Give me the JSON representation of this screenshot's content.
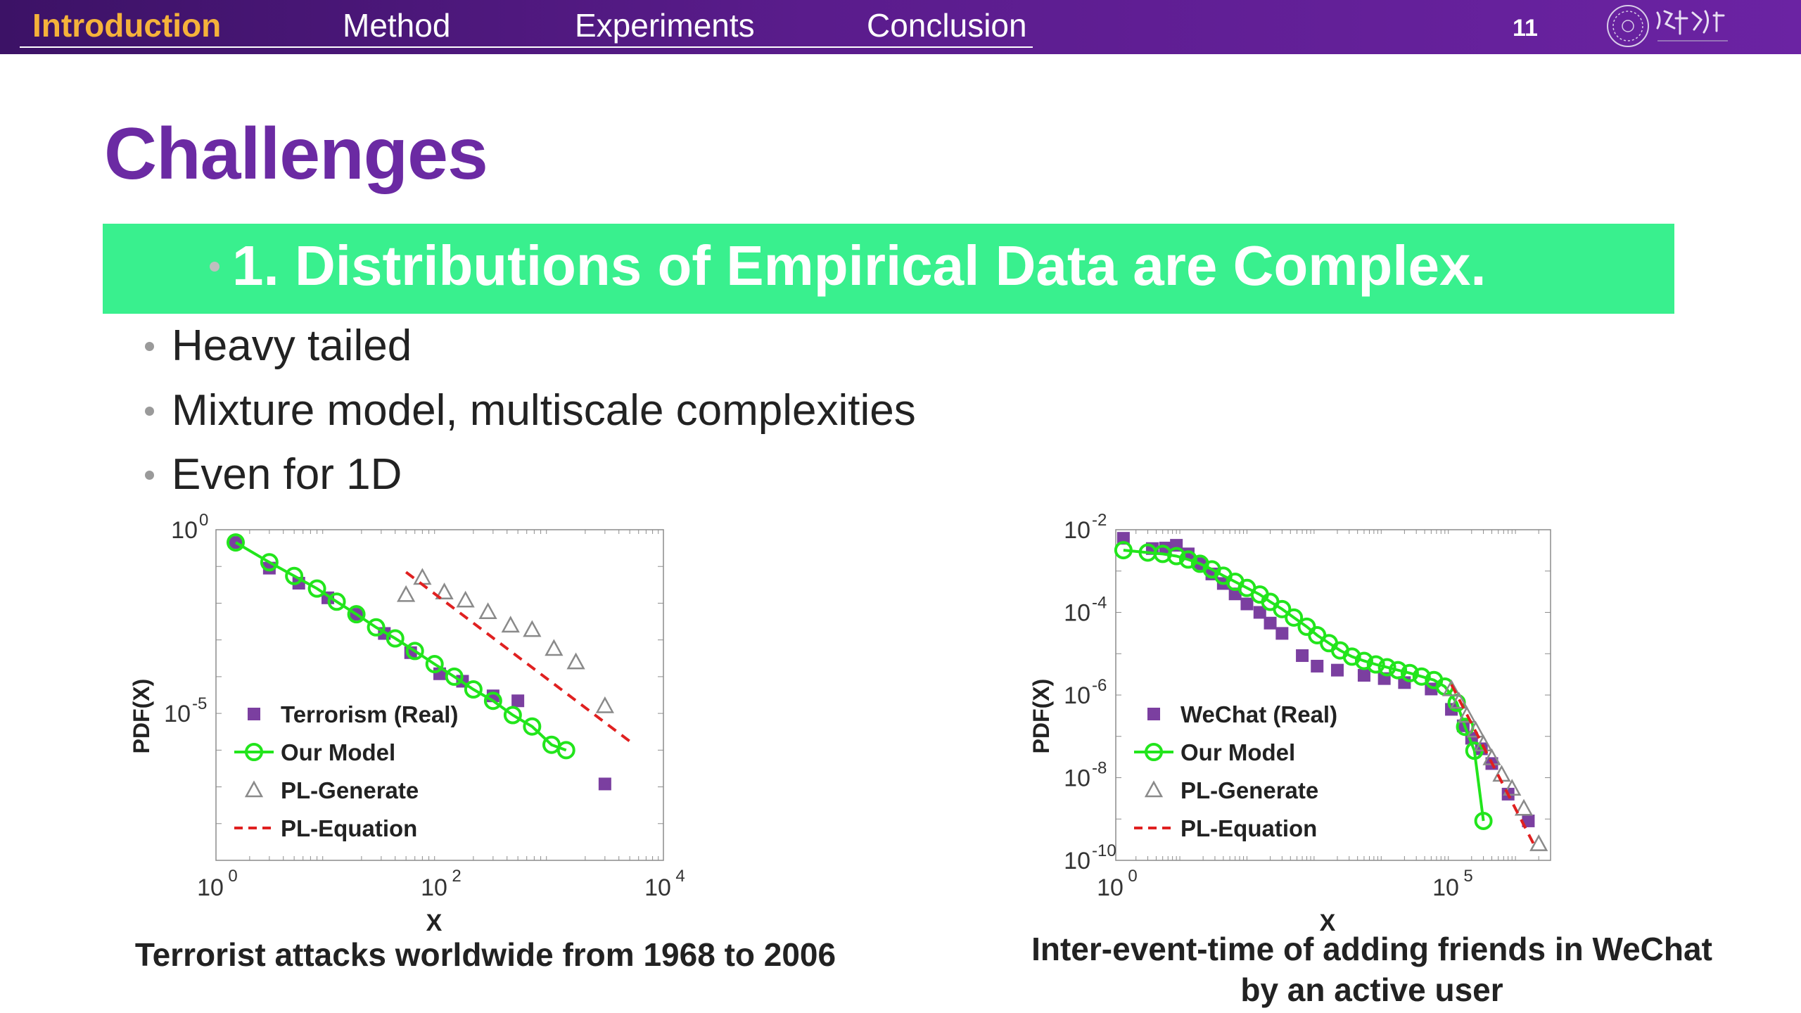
{
  "nav": {
    "items": [
      {
        "label": "Introduction",
        "active": true
      },
      {
        "label": "Method",
        "active": false
      },
      {
        "label": "Experiments",
        "active": false
      },
      {
        "label": "Conclusion",
        "active": false
      }
    ],
    "page_number": "11",
    "logo_icon": "university-logo-icon"
  },
  "slide": {
    "title": "Challenges",
    "banner": "1. Distributions of Empirical Data are Complex.",
    "bullets": [
      "Heavy tailed",
      "Mixture model, multiscale complexities",
      "Even for 1D"
    ]
  },
  "colors": {
    "title": "#6b2aa3",
    "banner": "#39f08e",
    "nav_active": "#f5b23a",
    "real_series": "#7b3fa0",
    "model_series": "#22e51c",
    "pl_generate": "#8a8a8a",
    "pl_equation": "#e02020"
  },
  "chart_data": [
    {
      "type": "scatter",
      "caption": "Terrorist attacks worldwide from 1968 to 2006",
      "xlabel": "X",
      "ylabel": "PDF(X)",
      "xscale": "log",
      "yscale": "log",
      "xlim": [
        1,
        10000
      ],
      "ylim": [
        1e-09,
        1
      ],
      "x_ticks": [
        {
          "base": "10",
          "exp": "0",
          "value": 1
        },
        {
          "base": "10",
          "exp": "2",
          "value": 100
        },
        {
          "base": "10",
          "exp": "4",
          "value": 10000
        }
      ],
      "y_ticks": [
        {
          "base": "10",
          "exp": "0",
          "value": 1
        },
        {
          "base": "10",
          "exp": "-5",
          "value": 1e-05
        }
      ],
      "legend_position": "bottom-left",
      "series": [
        {
          "name": "Terrorism (Real)",
          "marker": "square",
          "color": "#7b3fa0",
          "x": [
            1.5,
            3,
            5.5,
            10,
            18,
            32,
            55,
            100,
            160,
            300,
            500,
            3000
          ],
          "y": [
            0.45,
            0.09,
            0.035,
            0.014,
            0.005,
            0.0015,
            0.00045,
            0.00012,
            7.5e-05,
            3e-05,
            2.2e-05,
            1.2e-07
          ]
        },
        {
          "name": "Our Model",
          "marker": "circle-line",
          "color": "#22e51c",
          "x": [
            1.5,
            3,
            5,
            8,
            12,
            18,
            27,
            40,
            60,
            90,
            135,
            200,
            300,
            450,
            670,
            1000,
            1350
          ],
          "y": [
            0.45,
            0.13,
            0.055,
            0.025,
            0.011,
            0.005,
            0.0022,
            0.0011,
            0.0005,
            0.00022,
            0.0001,
            4.5e-05,
            2.2e-05,
            9e-06,
            4.4e-06,
            1.4e-06,
            1e-06
          ]
        },
        {
          "name": "PL-Generate",
          "marker": "triangle",
          "color": "#8a8a8a",
          "x": [
            50,
            70,
            110,
            170,
            270,
            430,
            670,
            1050,
            1650,
            3000
          ],
          "y": [
            0.017,
            0.05,
            0.02,
            0.012,
            0.0058,
            0.0025,
            0.0019,
            0.00058,
            0.00025,
            1.6e-05
          ]
        },
        {
          "name": "PL-Equation",
          "marker": "dashed-line",
          "color": "#e02020",
          "x": [
            50,
            5500
          ],
          "y": [
            0.07,
            1.4e-06
          ]
        }
      ]
    },
    {
      "type": "scatter",
      "caption": "Inter-event-time of adding friends in WeChat by an active user",
      "xlabel": "X",
      "ylabel": "PDF(X)",
      "xscale": "log",
      "yscale": "log",
      "xlim": [
        1,
        3000000
      ],
      "ylim": [
        1e-10,
        0.01
      ],
      "x_ticks": [
        {
          "base": "10",
          "exp": "0",
          "value": 1
        },
        {
          "base": "10",
          "exp": "5",
          "value": 100000
        }
      ],
      "y_ticks": [
        {
          "base": "10",
          "exp": "-2",
          "value": 0.01
        },
        {
          "base": "10",
          "exp": "-4",
          "value": 0.0001
        },
        {
          "base": "10",
          "exp": "-6",
          "value": 1e-06
        },
        {
          "base": "10",
          "exp": "-8",
          "value": 1e-08
        },
        {
          "base": "10",
          "exp": "-10",
          "value": 1e-10
        }
      ],
      "legend_position": "bottom-left",
      "series": [
        {
          "name": "WeChat (Real)",
          "marker": "square",
          "color": "#7b3fa0",
          "x": [
            1.3,
            3.5,
            5.5,
            8,
            12,
            18,
            27,
            40,
            60,
            90,
            140,
            200,
            300,
            600,
            1000,
            2000,
            5000,
            10000,
            20000,
            50000,
            100000,
            150000,
            200000,
            280000,
            400000,
            700000,
            1400000
          ],
          "y": [
            0.0062,
            0.0035,
            0.0036,
            0.0042,
            0.0026,
            0.0015,
            0.00085,
            0.0005,
            0.00028,
            0.00016,
            0.0001,
            5.5e-05,
            3.1e-05,
            9e-06,
            5e-06,
            4e-06,
            3e-06,
            2.5e-06,
            2e-06,
            1.4e-06,
            4.5e-07,
            1.8e-07,
            9e-08,
            5e-08,
            2.2e-08,
            4e-09,
            9e-10
          ]
        },
        {
          "name": "Our Model",
          "marker": "circle-line",
          "color": "#22e51c",
          "x": [
            1.3,
            3,
            5,
            8,
            12,
            18,
            27,
            40,
            60,
            90,
            140,
            200,
            300,
            450,
            700,
            1000,
            1500,
            2200,
            3300,
            5000,
            7500,
            11000,
            16000,
            24000,
            36000,
            55000,
            80000,
            120000,
            160000,
            220000,
            300000
          ],
          "y": [
            0.0032,
            0.0028,
            0.0026,
            0.0023,
            0.0019,
            0.0015,
            0.0011,
            0.00077,
            0.00055,
            0.00039,
            0.00027,
            0.00018,
            0.00012,
            7.5e-05,
            4.5e-05,
            2.8e-05,
            1.8e-05,
            1.2e-05,
            8.5e-06,
            6.7e-06,
            5.5e-06,
            4.7e-06,
            4e-06,
            3.4e-06,
            2.8e-06,
            2.3e-06,
            1.6e-06,
            6.5e-07,
            1.7e-07,
            4.5e-08,
            9e-10
          ]
        },
        {
          "name": "PL-Generate",
          "marker": "triangle",
          "color": "#8a8a8a",
          "x": [
            100000,
            130000,
            170000,
            230000,
            300000,
            400000,
            560000,
            800000,
            1200000,
            2000000
          ],
          "y": [
            1.4e-06,
            7e-07,
            3.2e-07,
            1.4e-07,
            6.5e-08,
            3e-08,
            1.2e-08,
            5.5e-09,
            1.8e-09,
            2.5e-10
          ]
        },
        {
          "name": "PL-Equation",
          "marker": "dashed-line",
          "color": "#e02020",
          "x": [
            100000,
            1800000
          ],
          "y": [
            1.8e-06,
            2e-10
          ]
        }
      ]
    }
  ]
}
